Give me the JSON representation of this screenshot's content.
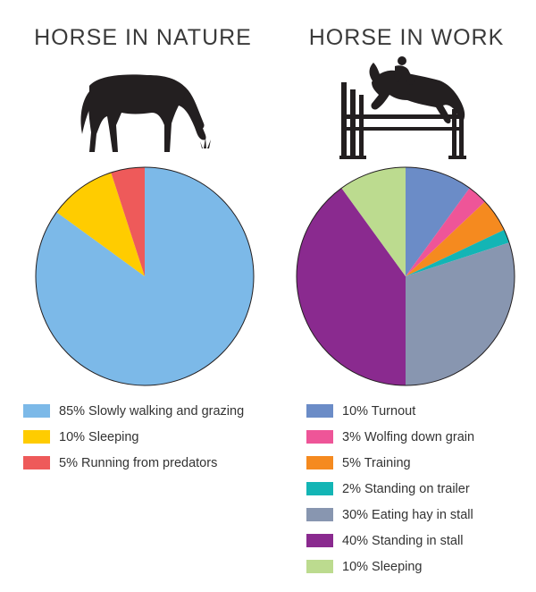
{
  "chart_data": [
    {
      "type": "pie",
      "title": "HORSE IN NATURE",
      "slices": [
        {
          "label": "85% Slowly walking and grazing",
          "value": 85,
          "color": "#7cb9e8"
        },
        {
          "label": "10% Sleeping",
          "value": 10,
          "color": "#ffcc00"
        },
        {
          "label": "5% Running from predators",
          "value": 5,
          "color": "#ee5a5a"
        }
      ],
      "icon": "grazing-horse-icon"
    },
    {
      "type": "pie",
      "title": "HORSE IN WORK",
      "slices": [
        {
          "label": "10% Turnout",
          "value": 10,
          "color": "#6b8cc7"
        },
        {
          "label": "3% Wolfing down grain",
          "value": 3,
          "color": "#ee5598"
        },
        {
          "label": "5% Training",
          "value": 5,
          "color": "#f58a1f"
        },
        {
          "label": "2% Standing on trailer",
          "value": 2,
          "color": "#13b5b5"
        },
        {
          "label": "30% Eating hay in stall",
          "value": 30,
          "color": "#8896b0"
        },
        {
          "label": "40% Standing in stall",
          "value": 40,
          "color": "#8a2a8f"
        },
        {
          "label": "10% Sleeping",
          "value": 10,
          "color": "#bcdb8f"
        }
      ],
      "icon": "show-jumping-horse-icon"
    }
  ]
}
